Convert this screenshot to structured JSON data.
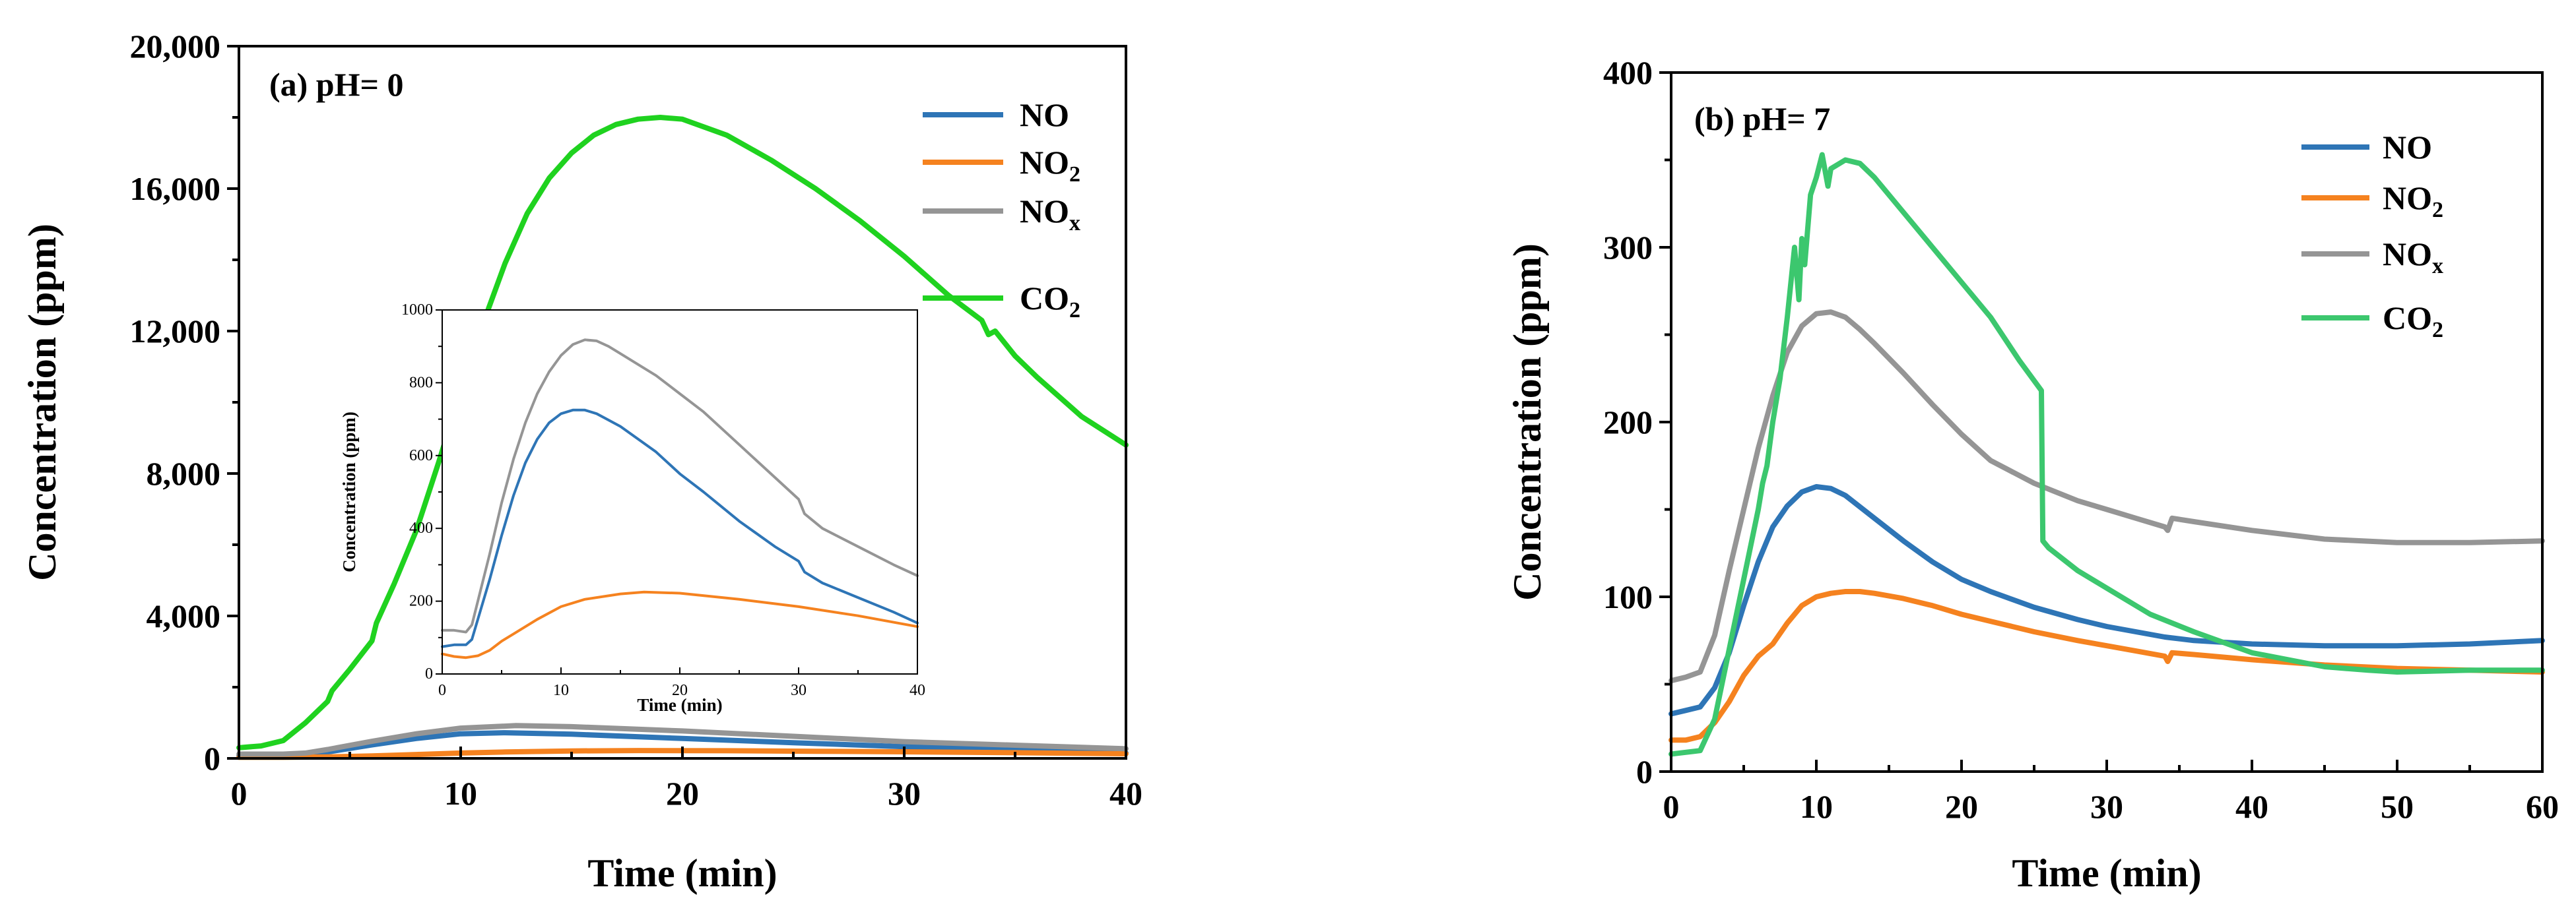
{
  "chart_data": [
    {
      "type": "line",
      "title": "(a) pH= 0",
      "xlabel": "Time (min)",
      "ylabel": "Concentration (ppm)",
      "xlim": [
        0,
        40
      ],
      "ylim": [
        0,
        20000
      ],
      "xticks": [
        0,
        10,
        20,
        30,
        40
      ],
      "yticks": [
        0,
        4000,
        8000,
        12000,
        16000,
        20000
      ],
      "xtick_labels": [
        "0",
        "10",
        "20",
        "30",
        "40"
      ],
      "ytick_labels": [
        "0",
        "4,000",
        "8,000",
        "12,000",
        "16,000",
        "20,000"
      ],
      "legend_position": "top-right",
      "series": [
        {
          "name": "NO",
          "label_main": "NO",
          "label_sub": "",
          "color": "#2e75b6",
          "x": [
            0,
            2,
            3,
            4,
            6,
            8,
            10,
            12,
            15,
            20,
            25,
            30,
            35,
            40
          ],
          "y": [
            80,
            80,
            100,
            180,
            380,
            560,
            690,
            720,
            680,
            560,
            440,
            330,
            240,
            150
          ]
        },
        {
          "name": "NO2",
          "label_main": "NO",
          "label_sub": "2",
          "color": "#f5821f",
          "x": [
            0,
            2,
            4,
            6,
            8,
            10,
            12,
            15,
            18,
            22,
            26,
            30,
            35,
            40
          ],
          "y": [
            30,
            30,
            40,
            70,
            110,
            150,
            180,
            210,
            220,
            215,
            200,
            185,
            160,
            130
          ]
        },
        {
          "name": "NOx",
          "label_main": "NO",
          "label_sub": "x",
          "color": "#959595",
          "x": [
            0,
            2,
            3,
            4,
            6,
            8,
            10,
            12.5,
            15,
            20,
            25,
            30,
            35,
            40
          ],
          "y": [
            120,
            120,
            150,
            250,
            480,
            690,
            850,
            920,
            890,
            770,
            620,
            470,
            370,
            270
          ]
        },
        {
          "name": "CO2",
          "label_main": "CO",
          "label_sub": "2",
          "color": "#1fd21f",
          "x": [
            0,
            1,
            2,
            3,
            4,
            4.2,
            5,
            6,
            6.2,
            7,
            8,
            9,
            10,
            11,
            12,
            13,
            14,
            15,
            16,
            17,
            18,
            19,
            20,
            22,
            24,
            26,
            28,
            30,
            32,
            33.5,
            33.8,
            34.1,
            35,
            36,
            38,
            40
          ],
          "y": [
            300,
            350,
            500,
            1000,
            1600,
            1900,
            2500,
            3300,
            3800,
            4900,
            6400,
            8300,
            10300,
            12200,
            13900,
            15300,
            16300,
            17000,
            17500,
            17800,
            17950,
            18000,
            17950,
            17500,
            16800,
            16000,
            15100,
            14100,
            13000,
            12300,
            11900,
            12000,
            11300,
            10700,
            9600,
            8800
          ]
        }
      ],
      "inset": {
        "xlabel": "Time (min)",
        "ylabel": "Concentration (ppm)",
        "xlim": [
          0,
          40
        ],
        "ylim": [
          0,
          1000
        ],
        "xticks": [
          0,
          10,
          20,
          30,
          40
        ],
        "yticks": [
          0,
          200,
          400,
          600,
          800,
          1000
        ],
        "xtick_labels": [
          "0",
          "10",
          "20",
          "30",
          "40"
        ],
        "ytick_labels": [
          "0",
          "200",
          "400",
          "600",
          "800",
          "1000"
        ],
        "series": [
          {
            "name": "NO",
            "color": "#2e75b6",
            "x": [
              0,
              1,
              2,
              2.5,
              3,
              4,
              5,
              6,
              7,
              8,
              9,
              10,
              11,
              12,
              13,
              15,
              18,
              20,
              22,
              25,
              28,
              30,
              30.5,
              32,
              35,
              38,
              40
            ],
            "y": [
              75,
              80,
              80,
              95,
              150,
              260,
              380,
              490,
              580,
              645,
              690,
              715,
              725,
              725,
              715,
              680,
              610,
              550,
              500,
              420,
              350,
              310,
              280,
              250,
              210,
              170,
              140
            ]
          },
          {
            "name": "NO2",
            "color": "#f5821f",
            "x": [
              0,
              1,
              2,
              3,
              4,
              5,
              6,
              8,
              10,
              12,
              15,
              17,
              20,
              25,
              30,
              35,
              40
            ],
            "y": [
              55,
              48,
              45,
              50,
              65,
              90,
              110,
              150,
              185,
              205,
              220,
              225,
              222,
              205,
              185,
              160,
              130
            ]
          },
          {
            "name": "NOx",
            "color": "#959595",
            "x": [
              0,
              1,
              2,
              2.5,
              3,
              4,
              5,
              6,
              7,
              8,
              9,
              10,
              11,
              12,
              13,
              14,
              15,
              18,
              20,
              22,
              25,
              28,
              30,
              30.5,
              32,
              35,
              38,
              40
            ],
            "y": [
              120,
              120,
              115,
              135,
              200,
              330,
              470,
              590,
              690,
              770,
              830,
              875,
              905,
              918,
              915,
              900,
              880,
              820,
              770,
              720,
              630,
              540,
              480,
              440,
              400,
              350,
              300,
              270
            ]
          }
        ]
      }
    },
    {
      "type": "line",
      "title": "(b) pH= 7",
      "xlabel": "Time (min)",
      "ylabel": "Concentration (ppm)",
      "xlim": [
        0,
        60
      ],
      "ylim": [
        0,
        400
      ],
      "xticks": [
        0,
        10,
        20,
        30,
        40,
        50,
        60
      ],
      "yticks": [
        0,
        100,
        200,
        300,
        400
      ],
      "xtick_labels": [
        "0",
        "10",
        "20",
        "30",
        "40",
        "50",
        "60"
      ],
      "ytick_labels": [
        "0",
        "100",
        "200",
        "300",
        "400"
      ],
      "legend_position": "top-right",
      "series": [
        {
          "name": "NO",
          "label_main": "NO",
          "label_sub": "",
          "color": "#2e75b6",
          "x": [
            0,
            1,
            2,
            3,
            4,
            5,
            6,
            7,
            8,
            9,
            10,
            11,
            12,
            14,
            16,
            18,
            20,
            22,
            25,
            28,
            30,
            32,
            34,
            36,
            40,
            45,
            50,
            55,
            60
          ],
          "y": [
            33,
            35,
            37,
            48,
            68,
            95,
            120,
            140,
            152,
            160,
            163,
            162,
            158,
            145,
            132,
            120,
            110,
            103,
            94,
            87,
            83,
            80,
            77,
            75,
            73,
            72,
            72,
            73,
            75
          ]
        },
        {
          "name": "NO2",
          "label_main": "NO",
          "label_sub": "2",
          "color": "#f5821f",
          "x": [
            0,
            1,
            2,
            3,
            4,
            5,
            6,
            7,
            8,
            9,
            10,
            11,
            12,
            13,
            14,
            16,
            18,
            20,
            22,
            25,
            28,
            30,
            32,
            34,
            34.2,
            34.5,
            36,
            40,
            45,
            50,
            55,
            60
          ],
          "y": [
            18,
            18,
            20,
            28,
            40,
            55,
            66,
            73,
            85,
            95,
            100,
            102,
            103,
            103,
            102,
            99,
            95,
            90,
            86,
            80,
            75,
            72,
            69,
            66,
            63,
            68,
            67,
            64,
            61,
            59,
            58,
            57
          ]
        },
        {
          "name": "NOx",
          "label_main": "NO",
          "label_sub": "x",
          "color": "#959595",
          "x": [
            0,
            1,
            2,
            3,
            4,
            5,
            6,
            7,
            8,
            9,
            10,
            11,
            12,
            13,
            14,
            16,
            18,
            20,
            22,
            25,
            28,
            30,
            32,
            34,
            34.2,
            34.5,
            36,
            40,
            45,
            50,
            55,
            60
          ],
          "y": [
            52,
            54,
            57,
            78,
            115,
            150,
            185,
            215,
            240,
            255,
            262,
            263,
            260,
            253,
            245,
            228,
            210,
            193,
            178,
            165,
            155,
            150,
            145,
            140,
            138,
            145,
            143,
            138,
            133,
            131,
            131,
            132
          ]
        },
        {
          "name": "CO2",
          "label_main": "CO",
          "label_sub": "2",
          "color": "#3cc76e",
          "x": [
            0,
            1,
            2,
            3,
            4,
            5,
            6,
            6.3,
            6.6,
            7,
            7.5,
            8,
            8.5,
            8.8,
            9,
            9.2,
            9.6,
            10,
            10.4,
            10.8,
            11,
            12,
            13,
            14,
            15,
            16,
            18,
            20,
            22,
            24,
            25.5,
            25.6,
            26,
            28,
            30,
            33,
            36,
            40,
            45,
            48,
            50,
            55,
            60
          ],
          "y": [
            10,
            11,
            12,
            30,
            70,
            110,
            150,
            165,
            175,
            200,
            225,
            260,
            300,
            270,
            305,
            290,
            330,
            340,
            353,
            335,
            345,
            350,
            348,
            340,
            330,
            320,
            300,
            280,
            260,
            235,
            218,
            132,
            128,
            115,
            105,
            90,
            80,
            68,
            60,
            58,
            57,
            58,
            58
          ]
        }
      ]
    }
  ]
}
